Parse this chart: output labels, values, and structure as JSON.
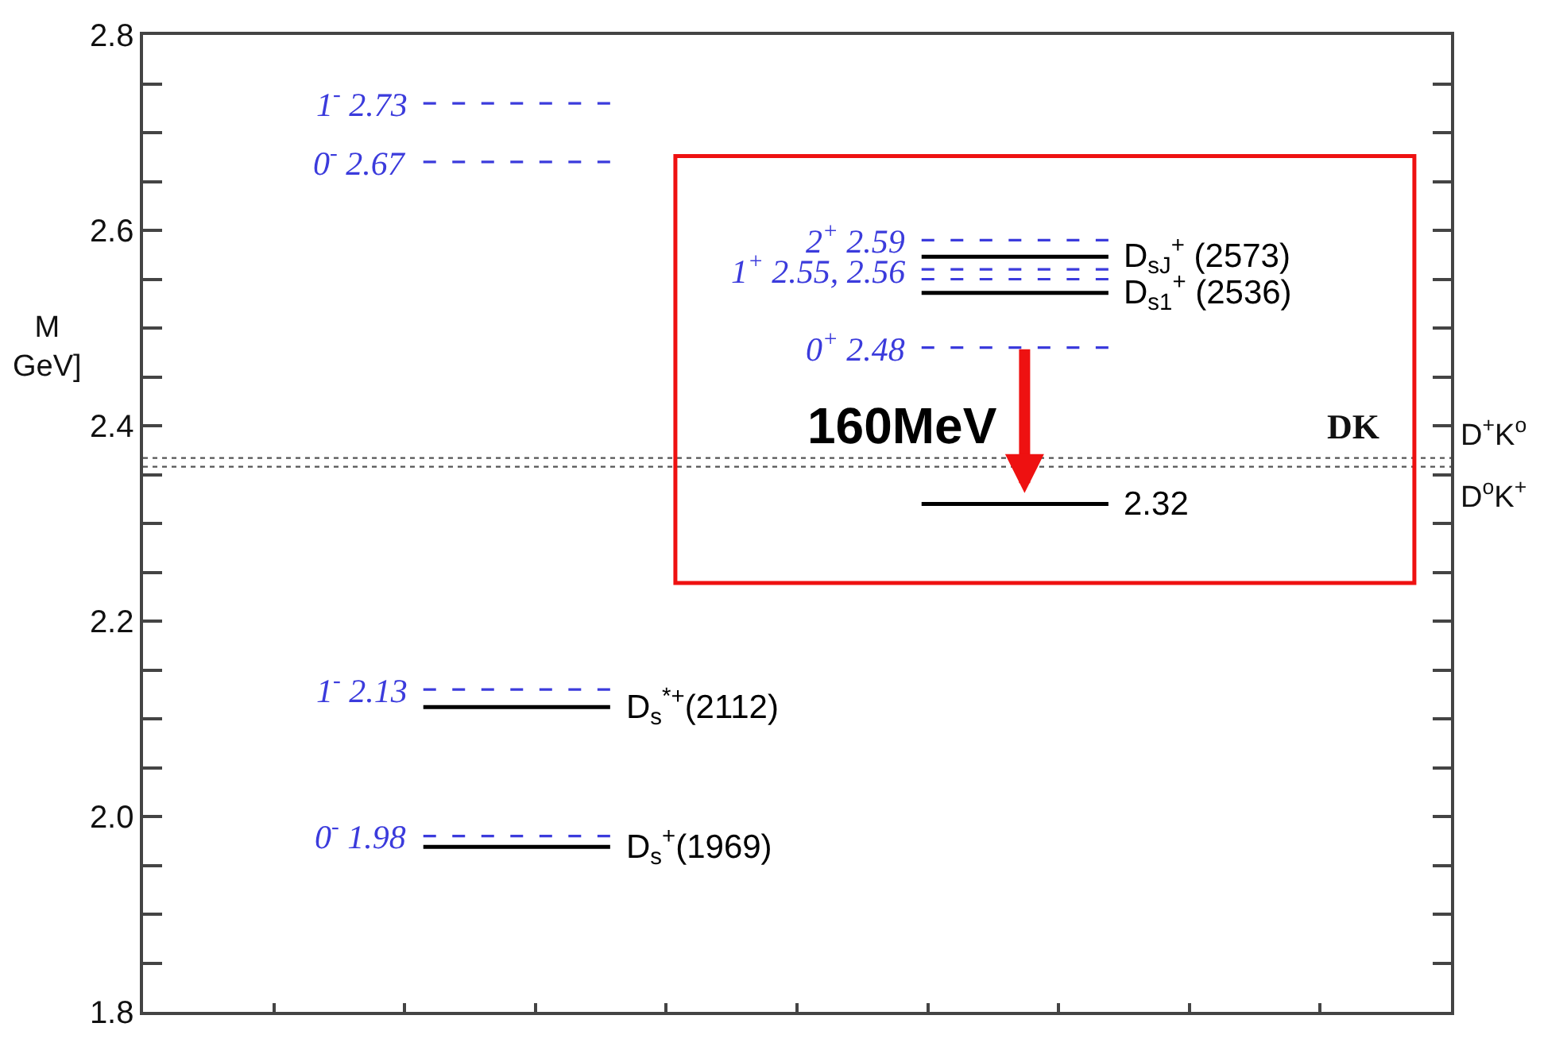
{
  "chart_data": {
    "type": "line",
    "ylabel": "M\nGeV]",
    "categories": [
      null,
      null,
      null,
      null,
      null,
      null,
      null,
      null,
      null,
      null,
      null,
      null,
      null,
      null,
      null,
      null,
      null,
      null,
      null,
      null,
      null
    ],
    "ylim": [
      1.8,
      2.8
    ],
    "yticks": [
      1.8,
      {
        "value": 1.85,
        "label": null
      },
      {
        "value": 1.9,
        "label": null
      },
      {
        "value": 1.95,
        "label": null
      },
      {
        "value": 2.0,
        "label": "2.0"
      },
      {
        "value": 2.05,
        "label": null
      },
      {
        "value": 2.1,
        "label": null
      },
      {
        "value": 2.15,
        "label": null
      },
      2.2,
      {
        "value": 2.25,
        "label": null
      },
      {
        "value": 2.3,
        "label": null
      },
      {
        "value": 2.35,
        "label": null
      },
      2.4,
      {
        "value": 2.45,
        "label": null
      },
      {
        "value": 2.5,
        "label": null
      },
      {
        "value": 2.55,
        "label": null
      },
      2.6,
      {
        "value": 2.65,
        "label": null
      },
      {
        "value": 2.7,
        "label": null
      },
      {
        "value": 2.75,
        "label": null
      },
      2.8
    ],
    "legend": false,
    "marker": "none",
    "series": [
      {
        "name": "1$^{-}$ 2.73",
        "color": "#3b3bdc",
        "line_style": "dashed",
        "values": [
          null,
          null,
          null,
          null,
          2.73,
          2.73,
          2.73,
          2.73,
          null,
          null,
          null,
          null,
          null,
          null,
          null,
          null,
          null,
          null,
          null,
          null,
          null
        ]
      },
      {
        "name": "0$^{-}$ 2.67",
        "color": "#3b3bdc",
        "line_style": "dashed",
        "values": [
          null,
          null,
          null,
          null,
          2.67,
          2.67,
          2.67,
          2.67,
          null,
          null,
          null,
          null,
          null,
          null,
          null,
          null,
          null,
          null,
          null,
          null,
          null
        ]
      },
      {
        "name": "1$^{-}$ 2.13",
        "color": "#3b3bdc",
        "line_style": "dashed",
        "values": [
          null,
          null,
          null,
          null,
          2.13,
          2.13,
          2.13,
          2.13,
          null,
          null,
          null,
          null,
          null,
          null,
          null,
          null,
          null,
          null,
          null,
          null,
          null
        ]
      },
      {
        "name": "0$^{-}$ 1.98",
        "color": "#3b3bdc",
        "line_style": "dashed",
        "values": [
          null,
          null,
          null,
          null,
          1.98,
          1.98,
          1.98,
          1.98,
          null,
          null,
          null,
          null,
          null,
          null,
          null,
          null,
          null,
          null,
          null,
          null,
          null
        ]
      },
      {
        "name": "D$_{s}$$^{*+}$(2112)",
        "color": "#000000",
        "line_style": "solid",
        "values": [
          null,
          null,
          null,
          null,
          2.112,
          2.112,
          2.112,
          2.112,
          null,
          null,
          null,
          null,
          null,
          null,
          null,
          null,
          null,
          null,
          null,
          null,
          null
        ]
      },
      {
        "name": "D$_{s}$$^{+}$(1969)",
        "color": "#000000",
        "line_style": "solid",
        "values": [
          null,
          null,
          null,
          null,
          1.969,
          1.969,
          1.969,
          1.969,
          null,
          null,
          null,
          null,
          null,
          null,
          null,
          null,
          null,
          null,
          null,
          null,
          null
        ]
      },
      {
        "name": "2$^{+}$ 2.59",
        "color": "#3b3bdc",
        "line_style": "dashed",
        "values": [
          null,
          null,
          null,
          null,
          null,
          null,
          null,
          null,
          null,
          null,
          null,
          null,
          2.59,
          2.59,
          2.59,
          2.59,
          null,
          null,
          null,
          null,
          null
        ]
      },
      {
        "name": "1$^{+}$ 2.55, 2.56",
        "color": "#3b3bdc",
        "line_style": "dashed",
        "values": [
          null,
          null,
          null,
          null,
          null,
          null,
          null,
          null,
          null,
          null,
          null,
          null,
          2.56,
          2.56,
          2.56,
          2.56,
          null,
          null,
          null,
          null,
          null
        ]
      },
      {
        "color": "#3b3bdc",
        "line_style": "dashed",
        "values": [
          null,
          null,
          null,
          null,
          null,
          null,
          null,
          null,
          null,
          null,
          null,
          null,
          2.55,
          2.55,
          2.55,
          2.55,
          null,
          null,
          null,
          null,
          null
        ]
      },
      {
        "name": "0$^{+}$ 2.48",
        "color": "#3b3bdc",
        "line_style": "dashed",
        "values": [
          null,
          null,
          null,
          null,
          null,
          null,
          null,
          null,
          null,
          null,
          null,
          null,
          2.48,
          2.48,
          2.48,
          2.48,
          null,
          null,
          null,
          null,
          null
        ]
      },
      {
        "name": "D$_{sJ}$$^{+}$ (2573)",
        "color": "#000000",
        "line_style": "solid",
        "values": [
          null,
          null,
          null,
          null,
          null,
          null,
          null,
          null,
          null,
          null,
          null,
          null,
          2.573,
          2.573,
          2.573,
          2.573,
          null,
          null,
          null,
          null,
          null
        ]
      },
      {
        "name": "D$_{s1}$$^{+}$ (2536)",
        "color": "#000000",
        "line_style": "solid",
        "values": [
          null,
          null,
          null,
          null,
          null,
          null,
          null,
          null,
          null,
          null,
          null,
          null,
          2.536,
          2.536,
          2.536,
          2.536,
          null,
          null,
          null,
          null,
          null
        ]
      },
      {
        "name": "2.32",
        "color": "#000000",
        "line_style": "solid",
        "values": [
          null,
          null,
          null,
          null,
          null,
          null,
          null,
          null,
          null,
          null,
          null,
          null,
          2.32,
          2.32,
          2.32,
          2.32,
          null,
          null,
          null,
          null,
          null
        ]
      }
    ],
    "ref_lines": [
      {
        "axis": "y",
        "value": 2.367,
        "label": "D$^{+}$K$^{o}$",
        "color": "#555555",
        "line_style": "dotted"
      },
      {
        "axis": "y",
        "value": 2.358,
        "label": "D$^{o}$K$^{+}$",
        "color": "#555555",
        "line_style": "dotted"
      }
    ],
    "annotations": [
      "DK",
      "160MeV"
    ]
  }
}
